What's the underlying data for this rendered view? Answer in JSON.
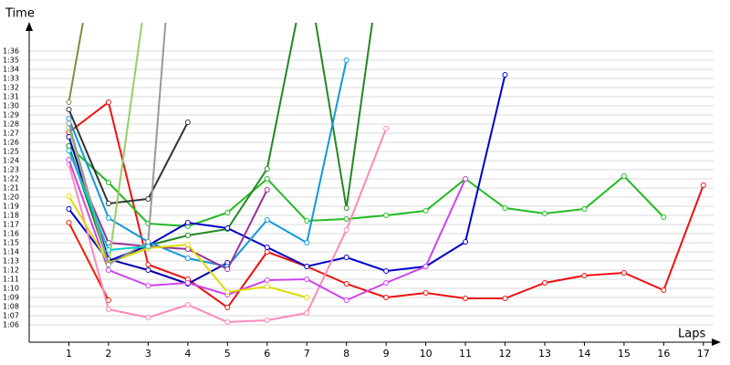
{
  "chart_data": {
    "type": "line",
    "x_label": "Laps",
    "y_label": "Time",
    "x": [
      1,
      2,
      3,
      4,
      5,
      6,
      7,
      8,
      9,
      10,
      11,
      12,
      13,
      14,
      15,
      16,
      17
    ],
    "xlim": [
      0,
      17.35
    ],
    "xticks": [
      1,
      2,
      3,
      4,
      5,
      6,
      7,
      8,
      9,
      10,
      11,
      12,
      13,
      14,
      15,
      16,
      17
    ],
    "ylim": [
      64.1,
      98.6
    ],
    "yticks": [
      {
        "value": 66,
        "label": "1:06"
      },
      {
        "value": 67,
        "label": "1:07"
      },
      {
        "value": 68,
        "label": "1:08"
      },
      {
        "value": 69,
        "label": "1:09"
      },
      {
        "value": 70,
        "label": "1:10"
      },
      {
        "value": 71,
        "label": "1:11"
      },
      {
        "value": 72,
        "label": "1:12"
      },
      {
        "value": 73,
        "label": "1:13"
      },
      {
        "value": 74,
        "label": "1:14"
      },
      {
        "value": 75,
        "label": "1:15"
      },
      {
        "value": 76,
        "label": "1:16"
      },
      {
        "value": 77,
        "label": "1:17"
      },
      {
        "value": 78,
        "label": "1:18"
      },
      {
        "value": 79,
        "label": "1:19"
      },
      {
        "value": 80,
        "label": "1:20"
      },
      {
        "value": 81,
        "label": "1:21"
      },
      {
        "value": 82,
        "label": "1:22"
      },
      {
        "value": 83,
        "label": "1:23"
      },
      {
        "value": 84,
        "label": "1:24"
      },
      {
        "value": 85,
        "label": "1:25"
      },
      {
        "value": 86,
        "label": "1:26"
      },
      {
        "value": 87,
        "label": "1:27"
      },
      {
        "value": 88,
        "label": "1:28"
      },
      {
        "value": 89,
        "label": "1:29"
      },
      {
        "value": 90,
        "label": "1:30"
      },
      {
        "value": 91,
        "label": "1:31"
      },
      {
        "value": 92,
        "label": "1:32"
      },
      {
        "value": 93,
        "label": "1:33"
      },
      {
        "value": 94,
        "label": "1:34"
      },
      {
        "value": 95,
        "label": "1:35"
      },
      {
        "value": 96,
        "label": "1:36"
      }
    ],
    "grid": true,
    "series": [
      {
        "color": "#ee1111",
        "values": [
          87.1,
          90.4,
          72.6,
          71,
          67.9,
          74,
          72.4,
          70.5,
          69,
          69.5,
          68.9,
          68.9,
          70.6,
          71.4,
          71.7,
          69.8,
          81.3
        ]
      },
      {
        "color": "#ee2200",
        "values": [
          77.2,
          68.7,
          null,
          null,
          null,
          null,
          null,
          null,
          null,
          null,
          null,
          null,
          null,
          null,
          null,
          null,
          null
        ]
      },
      {
        "color": "#22bb22",
        "values": [
          85.6,
          81.6,
          77.1,
          76.8,
          78.3,
          82,
          77.4,
          77.6,
          78,
          78.5,
          82,
          78.8,
          78.2,
          78.7,
          82.3,
          77.8,
          null
        ]
      },
      {
        "color": "#228822",
        "values": [
          85.6,
          72.8,
          74.7,
          75.8,
          76.5,
          83.1,
          105,
          78.8,
          110,
          null,
          null,
          null,
          null,
          null,
          null,
          null,
          null
        ]
      },
      {
        "color": "#0000cc",
        "values": [
          78.7,
          73,
          74.7,
          77.2,
          76.6,
          74.5,
          72.4,
          73.4,
          71.9,
          72.4,
          75.1,
          93.4,
          null,
          null,
          null,
          null,
          null
        ]
      },
      {
        "color": "#0000aa",
        "values": [
          86.6,
          73.2,
          72,
          70.5,
          72.8,
          null,
          null,
          null,
          null,
          null,
          null,
          null,
          null,
          null,
          null,
          null,
          null
        ]
      },
      {
        "color": "#1199dd",
        "values": [
          88.6,
          77.7,
          75.1,
          73.3,
          72.4,
          77.5,
          75,
          95,
          null,
          null,
          null,
          null,
          null,
          null,
          null,
          null,
          null
        ]
      },
      {
        "color": "#ff88bb",
        "values": [
          83.6,
          67.7,
          66.8,
          68.2,
          66.3,
          66.5,
          67.3,
          76.4,
          87.5,
          null,
          null,
          null,
          null,
          null,
          null,
          null,
          null
        ]
      },
      {
        "color": "#cc44ee",
        "values": [
          84.1,
          72,
          70.3,
          70.6,
          69.3,
          70.9,
          71,
          68.7,
          70.6,
          72.4,
          82,
          null,
          null,
          null,
          null,
          null,
          null
        ]
      },
      {
        "color": "#993399",
        "values": [
          85.1,
          75,
          74.6,
          74.3,
          72.1,
          80.8,
          null,
          null,
          null,
          null,
          null,
          null,
          null,
          null,
          null,
          null,
          null
        ]
      },
      {
        "color": "#dddd00",
        "values": [
          80.1,
          72.8,
          74.4,
          74.8,
          69.6,
          70.2,
          69,
          null,
          null,
          null,
          null,
          null,
          null,
          null,
          null,
          null,
          null
        ]
      },
      {
        "color": "#333333",
        "values": [
          89.6,
          79.3,
          79.8,
          88.2,
          null,
          null,
          null,
          null,
          null,
          null,
          null,
          null,
          null,
          null,
          null,
          null,
          null
        ]
      },
      {
        "color": "#888844",
        "values": [
          90.4,
          115,
          null,
          null,
          null,
          null,
          null,
          null,
          null,
          null,
          null,
          null,
          null,
          null,
          null,
          null,
          null
        ]
      },
      {
        "color": "#99cc66",
        "values": [
          87.6,
          72.6,
          104,
          null,
          null,
          null,
          null,
          null,
          null,
          null,
          null,
          null,
          null,
          null,
          null,
          null,
          null
        ]
      },
      {
        "color": "#999999",
        "values": [
          88.1,
          72.6,
          75.1,
          130,
          null,
          null,
          null,
          null,
          null,
          null,
          null,
          null,
          null,
          null,
          null,
          null,
          null
        ]
      },
      {
        "color": "#00cccc",
        "values": [
          85.1,
          74.2,
          74.6,
          null,
          null,
          null,
          null,
          null,
          null,
          null,
          null,
          null,
          null,
          null,
          null,
          null,
          null
        ]
      }
    ]
  }
}
